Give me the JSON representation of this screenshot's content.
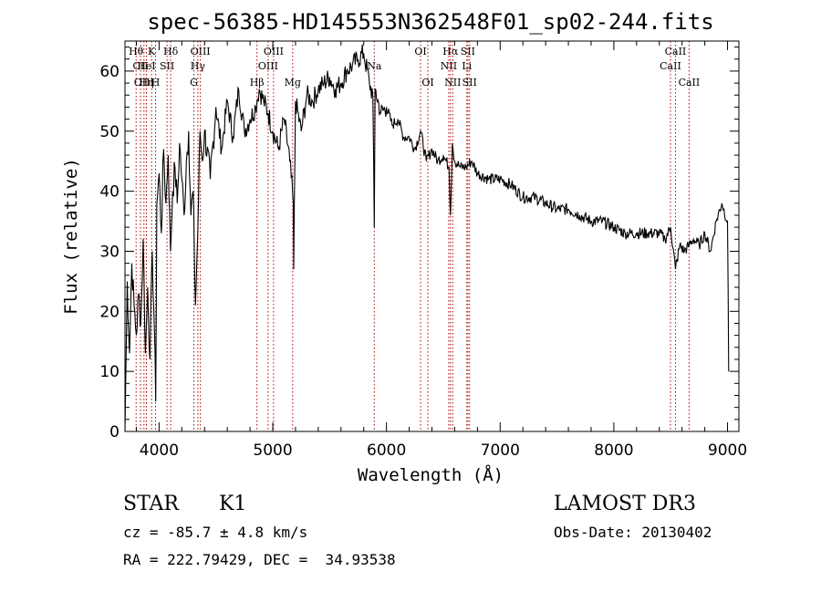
{
  "chart_data": {
    "type": "line",
    "title": "spec-56385-HD145553N362548F01_sp02-244.fits",
    "xlabel": "Wavelength (Å)",
    "ylabel": "Flux (relative)",
    "xlim": [
      3700,
      9100
    ],
    "ylim": [
      0,
      65
    ],
    "xticks": [
      4000,
      5000,
      6000,
      7000,
      8000,
      9000
    ],
    "yticks": [
      0,
      10,
      20,
      30,
      40,
      50,
      60
    ],
    "series": [
      {
        "name": "flux",
        "x": [
          3700,
          3720,
          3740,
          3760,
          3780,
          3800,
          3820,
          3840,
          3860,
          3880,
          3900,
          3920,
          3940,
          3960,
          3970,
          3980,
          4000,
          4020,
          4040,
          4060,
          4080,
          4100,
          4120,
          4140,
          4160,
          4180,
          4200,
          4220,
          4240,
          4260,
          4280,
          4300,
          4310,
          4320,
          4340,
          4360,
          4380,
          4400,
          4450,
          4500,
          4550,
          4600,
          4650,
          4700,
          4750,
          4800,
          4850,
          4861,
          4880,
          4920,
          4960,
          5000,
          5050,
          5100,
          5150,
          5180,
          5184,
          5200,
          5250,
          5300,
          5350,
          5400,
          5450,
          5500,
          5550,
          5600,
          5650,
          5700,
          5750,
          5800,
          5850,
          5880,
          5893,
          5900,
          5950,
          6000,
          6050,
          6100,
          6150,
          6200,
          6250,
          6300,
          6350,
          6400,
          6450,
          6500,
          6550,
          6563,
          6580,
          6600,
          6650,
          6700,
          6750,
          6800,
          6900,
          7000,
          7100,
          7200,
          7300,
          7400,
          7500,
          7600,
          7700,
          7800,
          7900,
          8000,
          8100,
          8200,
          8300,
          8400,
          8450,
          8500,
          8542,
          8580,
          8620,
          8662,
          8700,
          8750,
          8800,
          8850,
          8900,
          8950,
          9000,
          9010
        ],
        "values": [
          0,
          25,
          13,
          28,
          21,
          16,
          23,
          18,
          32,
          13,
          24,
          12,
          30,
          16,
          5,
          38,
          43,
          33,
          47,
          38,
          46,
          30,
          40,
          44,
          38,
          48,
          42,
          36,
          45,
          50,
          36,
          40,
          30,
          21,
          33,
          50,
          45,
          50,
          42,
          54,
          47,
          55,
          49,
          57,
          50,
          52,
          54,
          55,
          57,
          55,
          53,
          50,
          47,
          52,
          45,
          38,
          27,
          55,
          50,
          56,
          55,
          57,
          58,
          59,
          57,
          58,
          60,
          61,
          62,
          63,
          58,
          56,
          34,
          57,
          53,
          54,
          51,
          52,
          49,
          49,
          47,
          50,
          45,
          47,
          45,
          46,
          44,
          36,
          48,
          45,
          44,
          44,
          45,
          43,
          42,
          42,
          41,
          39,
          39,
          38,
          37,
          37,
          36,
          35,
          35,
          34,
          33,
          33,
          33,
          33,
          32,
          34,
          27,
          31,
          30,
          31,
          32,
          31,
          33,
          30,
          35,
          38,
          35,
          10
        ]
      }
    ],
    "spectral_lines": [
      {
        "name": "Hθ",
        "x": 3798,
        "row": 0
      },
      {
        "name": "CII",
        "x": 3837,
        "row": 1
      },
      {
        "name": "OIII",
        "x": 3867,
        "row": 2
      },
      {
        "name": "Hη",
        "x": 3889,
        "row": 2
      },
      {
        "name": "HeI",
        "x": 3888,
        "row": 1
      },
      {
        "name": "K",
        "x": 3934,
        "row": 0
      },
      {
        "name": "H",
        "x": 3969,
        "row": 2
      },
      {
        "name": "SII",
        "x": 4070,
        "row": 1
      },
      {
        "name": "Hδ",
        "x": 4102,
        "row": 0
      },
      {
        "name": "G",
        "x": 4306,
        "row": 2
      },
      {
        "name": "Hγ",
        "x": 4341,
        "row": 1
      },
      {
        "name": "OIII",
        "x": 4363,
        "row": 0
      },
      {
        "name": "Hβ",
        "x": 4861,
        "row": 2
      },
      {
        "name": "OIII",
        "x": 4959,
        "row": 1
      },
      {
        "name": "OIII",
        "x": 5007,
        "row": 0
      },
      {
        "name": "Mg",
        "x": 5175,
        "row": 2
      },
      {
        "name": "Na",
        "x": 5893,
        "row": 1
      },
      {
        "name": "OI",
        "x": 6300,
        "row": 0
      },
      {
        "name": "OI",
        "x": 6364,
        "row": 2
      },
      {
        "name": "NII",
        "x": 6548,
        "row": 1
      },
      {
        "name": "Hα",
        "x": 6563,
        "row": 0
      },
      {
        "name": "NII",
        "x": 6583,
        "row": 2
      },
      {
        "name": "Li",
        "x": 6707,
        "row": 1
      },
      {
        "name": "SII",
        "x": 6716,
        "row": 0
      },
      {
        "name": "SII",
        "x": 6731,
        "row": 2
      },
      {
        "name": "CaII",
        "x": 8498,
        "row": 1
      },
      {
        "name": "CaII",
        "x": 8542,
        "row": 0
      },
      {
        "name": "CaII",
        "x": 8662,
        "row": 2
      }
    ]
  },
  "info": {
    "object_class": "STAR",
    "subclass": "K1",
    "survey": "LAMOST DR3",
    "redshift": "cz = -85.7 ± 4.8 km/s",
    "obs_date": "Obs-Date: 20130402",
    "coords": "RA = 222.79429, DEC =  34.93538"
  }
}
